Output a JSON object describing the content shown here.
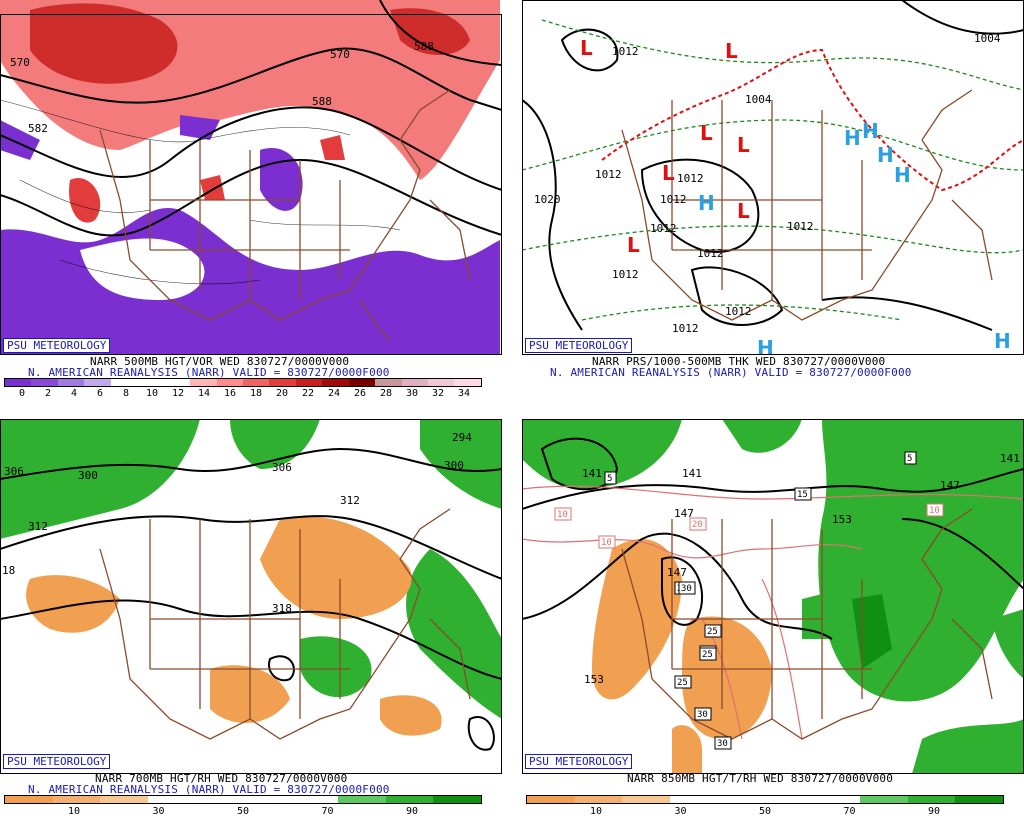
{
  "panels": [
    {
      "id": "p1",
      "credit": "PSU METEOROLOGY",
      "title": "NARR 500MB HGT/VOR WED 830727/0000V000",
      "subtitle": "N. AMERICAN REANALYSIS (NARR) VALID = 830727/0000F000",
      "colorbar": [
        "#7b2fd0",
        "#8a4ad8",
        "#a37be0",
        "#c2a8ec",
        "#ffffff",
        "#ffffff",
        "#ffffff",
        "#ffb4b4",
        "#ff8c8c",
        "#f26464",
        "#e23c3c",
        "#c81e1e",
        "#a00a0a",
        "#7a0000",
        "#c89898",
        "#e0b0c0",
        "#f0c8d8",
        "#ffd8e8"
      ],
      "ticks": [
        "0",
        "2",
        "4",
        "6",
        "8",
        "10",
        "12",
        "14",
        "16",
        "18",
        "20",
        "22",
        "24",
        "26",
        "28",
        "30",
        "32",
        "34"
      ],
      "contour_labels": [
        "570",
        "582",
        "588",
        "570",
        "588"
      ]
    },
    {
      "id": "p2",
      "credit": "PSU METEOROLOGY",
      "title": "NARR PRS/1000-500MB THK WED 830727/0000V000",
      "subtitle": "N. AMERICAN REANALYSIS (NARR) VALID = 830727/0000F000",
      "contour_labels": [
        "1012",
        "1004",
        "1004",
        "1012",
        "1020",
        "1012",
        "1012",
        "1012",
        "1012",
        "1012",
        "1012",
        "1012",
        "1012"
      ]
    },
    {
      "id": "p3",
      "credit": "PSU METEOROLOGY",
      "title": "NARR 700MB HGT/RH WED 830727/0000V000",
      "subtitle": "N. AMERICAN REANALYSIS (NARR) VALID = 830727/0000F000",
      "colorbar": [
        "#f0a050",
        "#f4b070",
        "#f8c890",
        "#ffffff",
        "#ffffff",
        "#ffffff",
        "#ffffff",
        "#60c860",
        "#30b030",
        "#109010"
      ],
      "ticks": [
        "10",
        "30",
        "50",
        "70",
        "90"
      ],
      "contour_labels": [
        "306",
        "300",
        "306",
        "312",
        "312",
        "318",
        "18",
        "294",
        "300"
      ]
    },
    {
      "id": "p4",
      "credit": "PSU METEOROLOGY",
      "title": "NARR 850MB HGT/T/RH WED 830727/0000V000",
      "colorbar": [
        "#f0a050",
        "#f4b070",
        "#f8c890",
        "#ffffff",
        "#ffffff",
        "#ffffff",
        "#ffffff",
        "#60c860",
        "#30b030",
        "#109010"
      ],
      "ticks": [
        "10",
        "30",
        "50",
        "70",
        "90"
      ],
      "contour_labels": [
        "141",
        "141",
        "147",
        "147",
        "153",
        "147",
        "153",
        "141"
      ],
      "boxed_labels": [
        "5",
        "5",
        "10",
        "10",
        "15",
        "20",
        "10",
        "25",
        "25",
        "30",
        "25",
        "25",
        "30",
        "25",
        "30"
      ]
    }
  ]
}
